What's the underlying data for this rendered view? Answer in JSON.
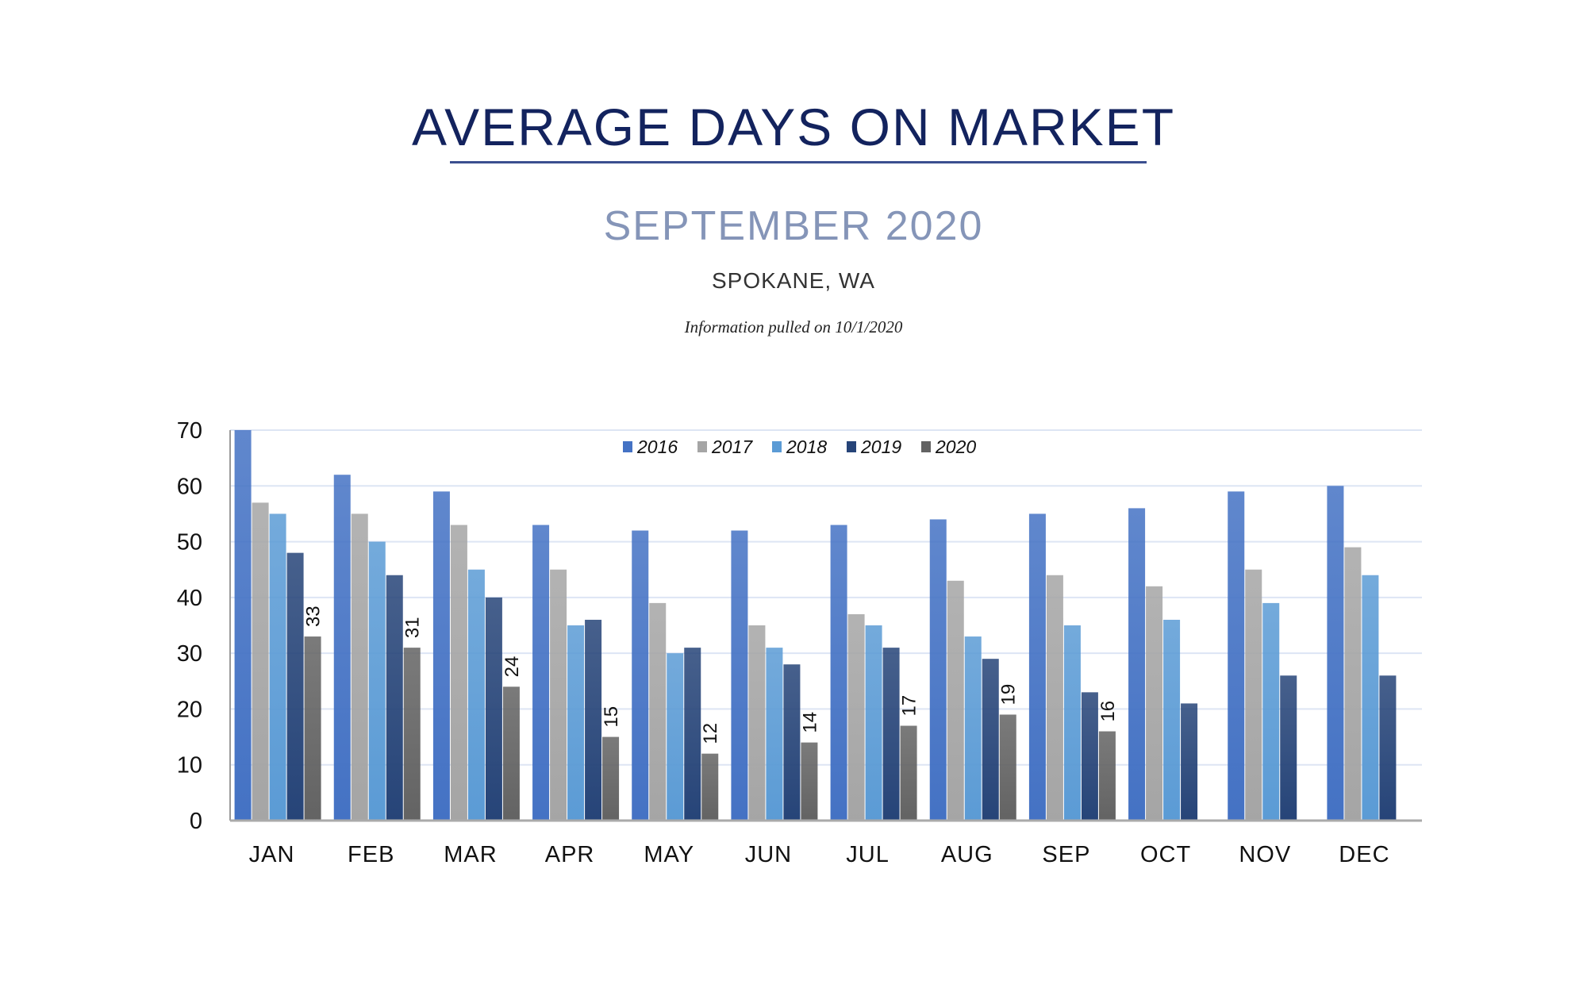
{
  "header": {
    "title": "AVERAGE DAYS ON MARKET",
    "subtitle": "SEPTEMBER 2020",
    "location": "SPOKANE, WA",
    "info": "Information pulled on 10/1/2020"
  },
  "chart_data": {
    "type": "bar",
    "title": "",
    "xlabel": "",
    "ylabel": "",
    "ylim": [
      0,
      70
    ],
    "yticks": [
      0,
      10,
      20,
      30,
      40,
      50,
      60,
      70
    ],
    "grid": true,
    "legend": "top-center",
    "categories": [
      "JAN",
      "FEB",
      "MAR",
      "APR",
      "MAY",
      "JUN",
      "JUL",
      "AUG",
      "SEP",
      "OCT",
      "NOV",
      "DEC"
    ],
    "series": [
      {
        "name": "2016",
        "color": "#4472c4",
        "values": [
          70,
          62,
          59,
          53,
          52,
          52,
          53,
          54,
          55,
          56,
          59,
          60
        ]
      },
      {
        "name": "2017",
        "color": "#a5a5a5",
        "values": [
          57,
          55,
          53,
          45,
          39,
          35,
          37,
          43,
          44,
          42,
          45,
          49
        ]
      },
      {
        "name": "2018",
        "color": "#5b9bd5",
        "values": [
          55,
          50,
          45,
          35,
          30,
          31,
          35,
          33,
          35,
          36,
          39,
          44
        ]
      },
      {
        "name": "2019",
        "color": "#264478",
        "values": [
          48,
          44,
          40,
          36,
          31,
          28,
          31,
          29,
          23,
          21,
          26,
          26
        ]
      },
      {
        "name": "2020",
        "color": "#636363",
        "values": [
          33,
          31,
          24,
          15,
          12,
          14,
          17,
          19,
          16,
          null,
          null,
          null
        ],
        "data_labels": true
      }
    ]
  }
}
